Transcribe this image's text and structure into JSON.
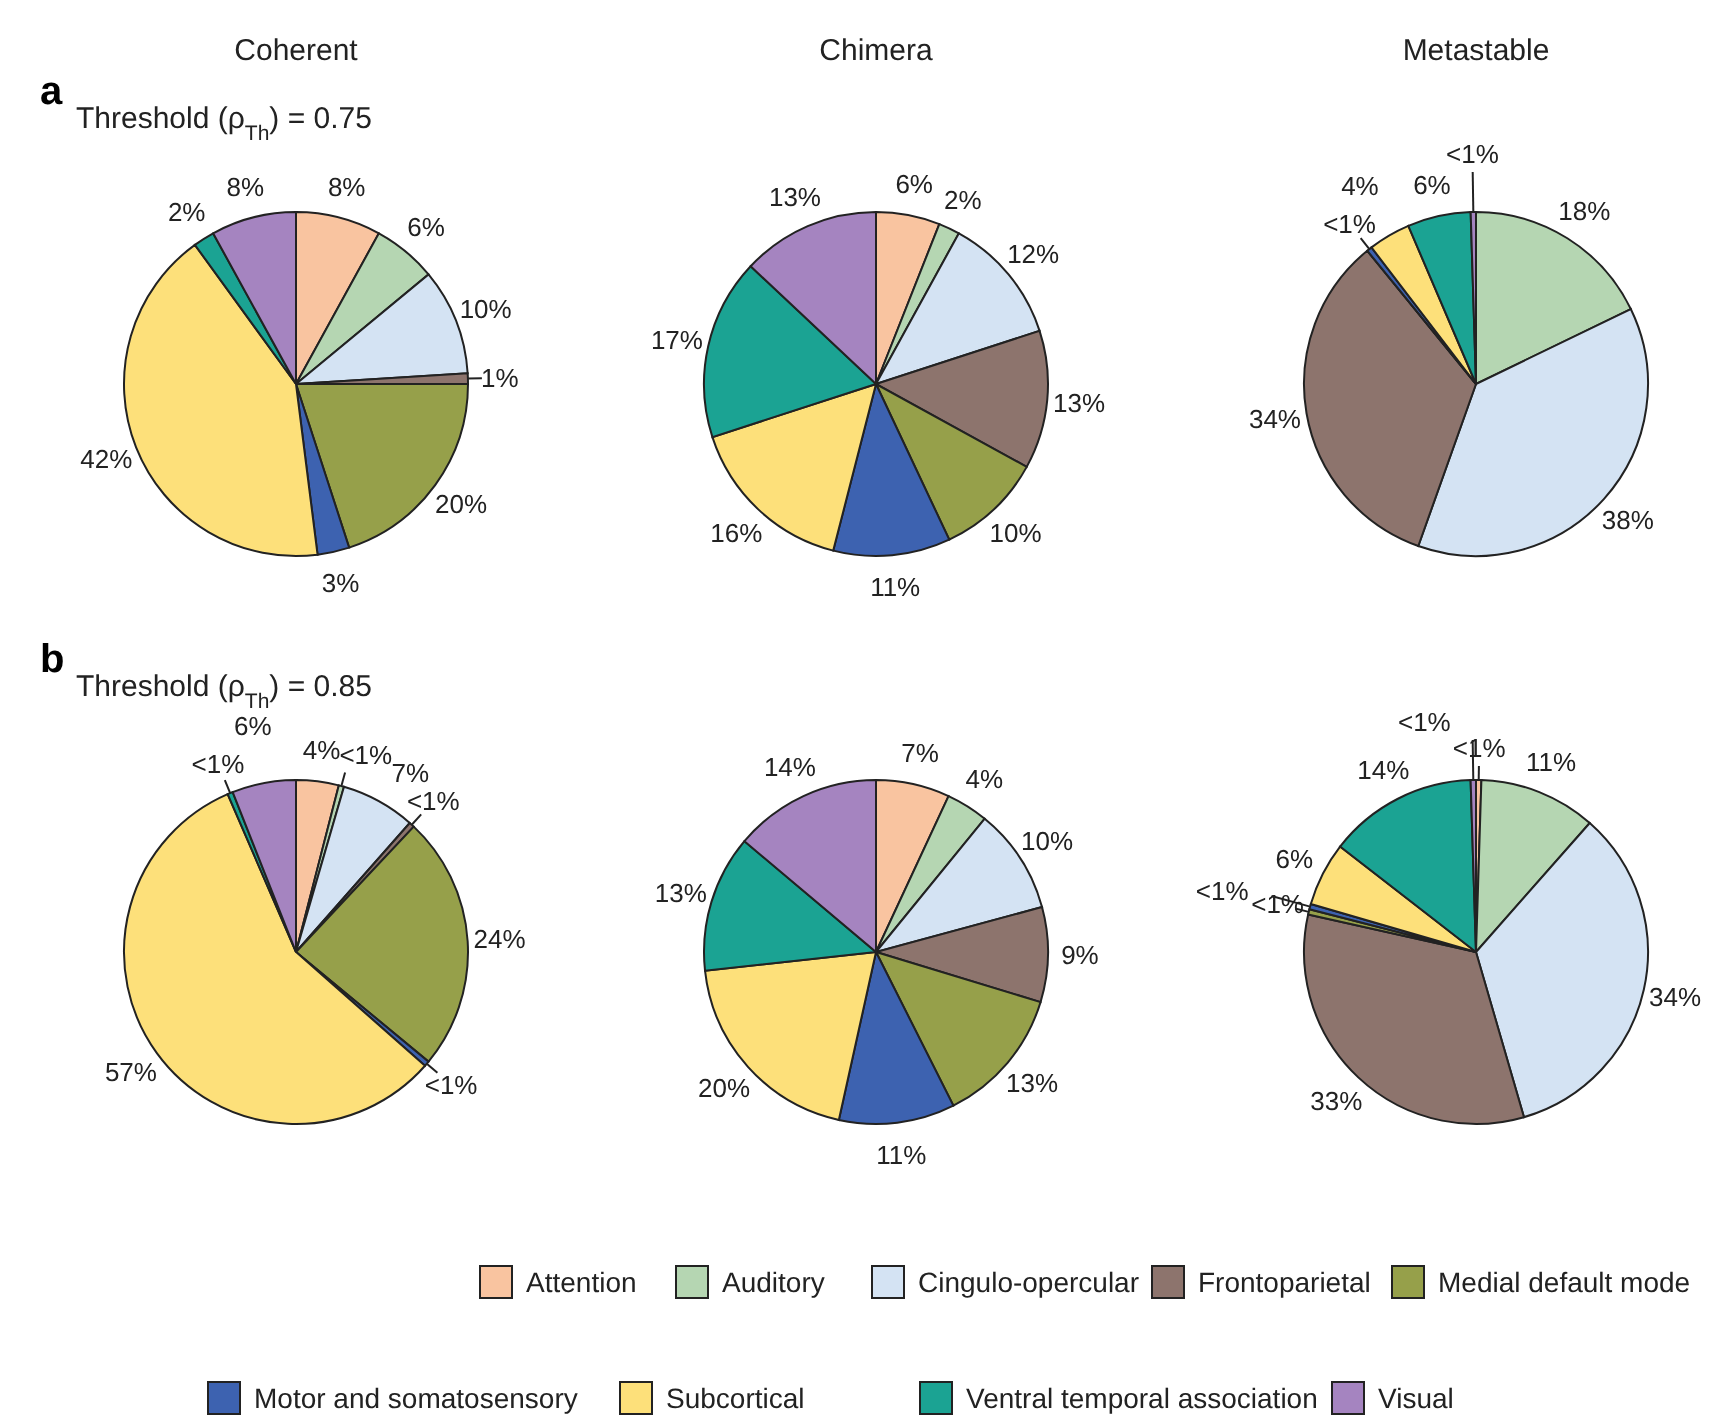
{
  "chart_data": [
    {
      "type": "pie",
      "title": "Coherent",
      "subtitle": "Threshold (ρ$_{Th}$) = 0.75",
      "annotations": [
        "a"
      ],
      "categories": [
        "Attention",
        "Auditory",
        "Cingulo-opercular",
        "Frontoparietal",
        "Medial default mode",
        "Motor and somatosensory",
        "Subcortical",
        "Ventral temporal association",
        "Visual"
      ],
      "colors": [
        "#f9c4a0",
        "#b5d6b2",
        "#d4e3f3",
        "#8d746d",
        "#96a04a",
        "#3d62b0",
        "#fde07a",
        "#1ba393",
        "#a584c0"
      ],
      "values": [
        8,
        6,
        10,
        1,
        20,
        3,
        42,
        2,
        8
      ],
      "value_labels": [
        "8%",
        "6%",
        "10%",
        "1%",
        "20%",
        "3%",
        "42%",
        "2%",
        "8%"
      ],
      "legend": "bottom"
    },
    {
      "type": "pie",
      "title": "Chimera",
      "colors": [
        "#f9c4a0",
        "#b5d6b2",
        "#d4e3f3",
        "#8d746d",
        "#96a04a",
        "#3d62b0",
        "#fde07a",
        "#1ba393",
        "#a584c0"
      ],
      "values": [
        6,
        2,
        12,
        13,
        10,
        11,
        16,
        17,
        13
      ],
      "value_labels": [
        "6%",
        "2%",
        "12%",
        "13%",
        "10%",
        "11%",
        "16%",
        "17%",
        "13%"
      ]
    },
    {
      "type": "pie",
      "title": "Metastable",
      "colors": [
        "#f9c4a0",
        "#b5d6b2",
        "#d4e3f3",
        "#8d746d",
        "#96a04a",
        "#3d62b0",
        "#fde07a",
        "#1ba393",
        "#a584c0"
      ],
      "values": [
        0,
        18,
        38,
        34,
        0,
        0.5,
        4,
        6,
        0.5
      ],
      "value_labels": [
        null,
        "18%",
        "38%",
        "34%",
        null,
        "<1%",
        "4%",
        "6%",
        "<1%"
      ]
    },
    {
      "type": "pie",
      "subtitle": "Threshold (ρ$_{Th}$) = 0.85",
      "annotations": [
        "b"
      ],
      "colors": [
        "#f9c4a0",
        "#b5d6b2",
        "#d4e3f3",
        "#8d746d",
        "#96a04a",
        "#3d62b0",
        "#fde07a",
        "#1ba393",
        "#a584c0"
      ],
      "values": [
        4,
        0.5,
        7,
        0.5,
        24,
        0.5,
        57,
        0.5,
        6
      ],
      "value_labels": [
        "4%",
        "<1%",
        "7%",
        "<1%",
        "24%",
        "<1%",
        "57%",
        "<1%",
        "6%"
      ]
    },
    {
      "type": "pie",
      "colors": [
        "#f9c4a0",
        "#b5d6b2",
        "#d4e3f3",
        "#8d746d",
        "#96a04a",
        "#3d62b0",
        "#fde07a",
        "#1ba393",
        "#a584c0"
      ],
      "values": [
        7,
        4,
        10,
        9,
        13,
        11,
        20,
        13,
        14
      ],
      "value_labels": [
        "7%",
        "4%",
        "10%",
        "9%",
        "13%",
        "11%",
        "20%",
        "13%",
        "14%"
      ]
    },
    {
      "type": "pie",
      "colors": [
        "#f9c4a0",
        "#b5d6b2",
        "#d4e3f3",
        "#8d746d",
        "#96a04a",
        "#3d62b0",
        "#fde07a",
        "#1ba393",
        "#a584c0"
      ],
      "values": [
        0.5,
        11,
        34,
        33,
        0.5,
        0.5,
        6,
        14,
        0.5
      ],
      "value_labels": [
        "<1%",
        "11%",
        "34%",
        "33%",
        "<1%",
        "<1%",
        "6%",
        "14%",
        "<1%"
      ]
    }
  ]
}
